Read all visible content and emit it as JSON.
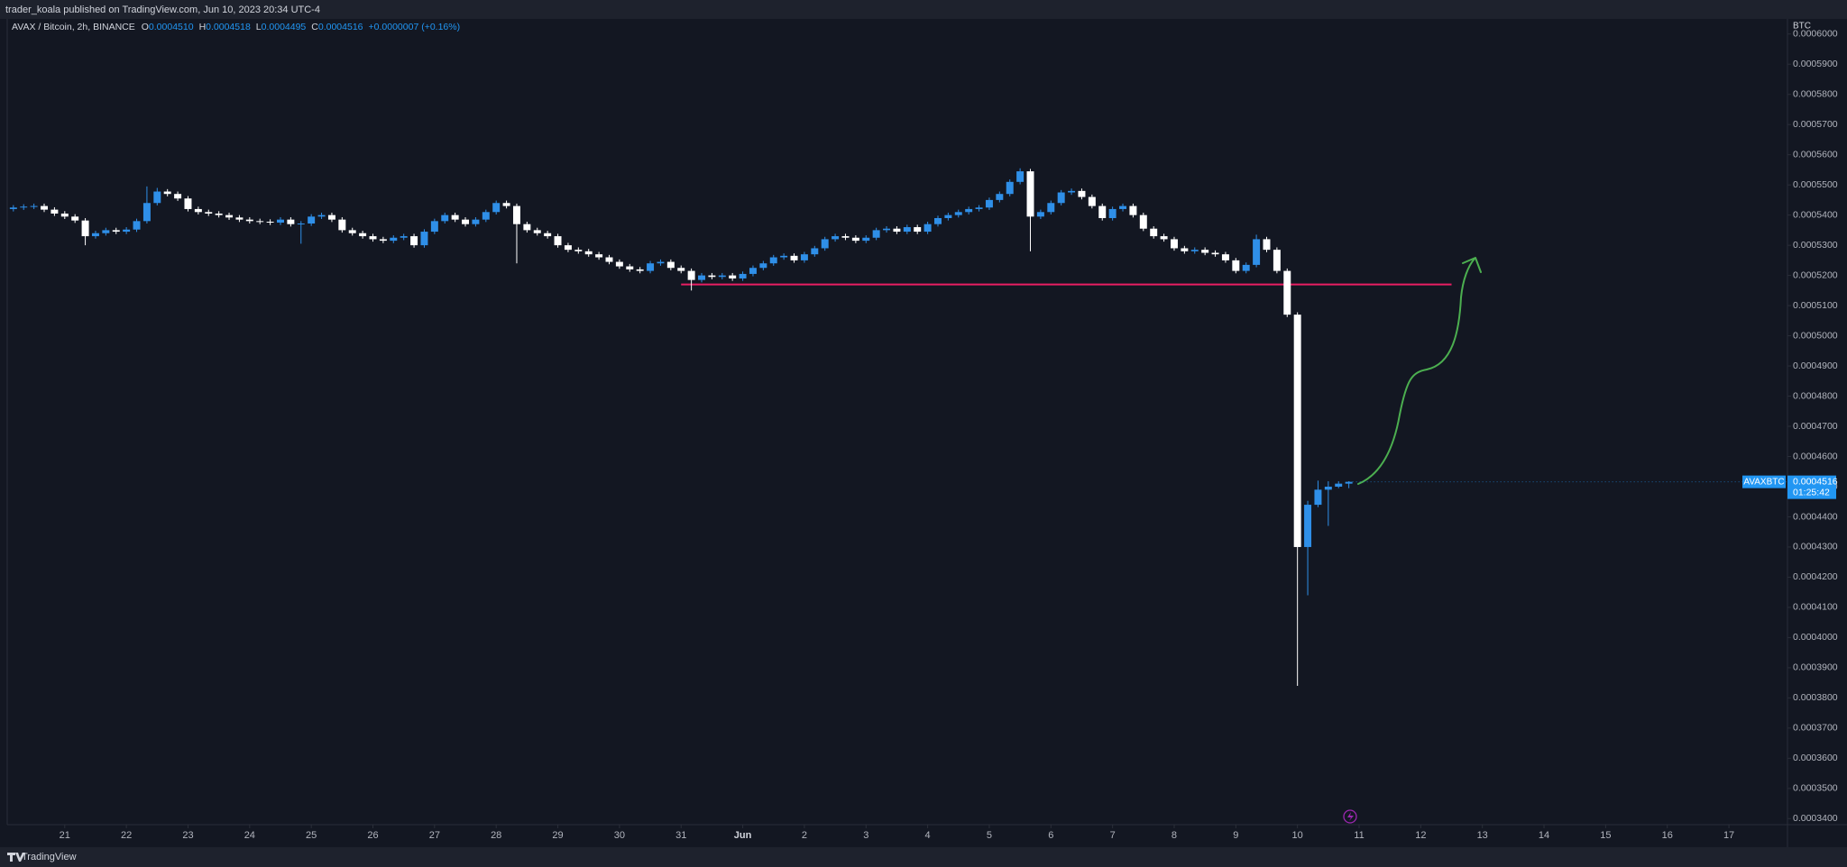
{
  "header": {
    "publisher": "trader_koala published on TradingView.com, Jun 10, 2023 20:34 UTC-4"
  },
  "chart_data": {
    "type": "candlestick",
    "title": "AVAX / Bitcoin, 2h, BINANCE",
    "legend_ohlc": [
      {
        "key": "O",
        "value": "0.0004510"
      },
      {
        "key": "H",
        "value": "0.0004518"
      },
      {
        "key": "L",
        "value": "0.0004495"
      },
      {
        "key": "C",
        "value": "0.0004516"
      }
    ],
    "change": "+0.0000007 (+0.16%)",
    "open": [
      0.000542,
      0.0005425,
      0.0005428,
      0.000543,
      0.0005418,
      0.0005405,
      0.0005395,
      0.0005382,
      0.000533,
      0.000534,
      0.000535,
      0.0005345,
      0.0005352,
      0.000538,
      0.000544,
      0.0005478,
      0.000547,
      0.0005455,
      0.000542,
      0.000541,
      0.0005405,
      0.00054,
      0.0005392,
      0.0005385,
      0.000538,
      0.0005378,
      0.0005375,
      0.0005385,
      0.000537,
      0.0005372,
      0.0005395,
      0.00054,
      0.0005385,
      0.000535,
      0.000534,
      0.000533,
      0.000532,
      0.0005315,
      0.0005325,
      0.000533,
      0.00053,
      0.0005345,
      0.000538,
      0.00054,
      0.0005385,
      0.000537,
      0.0005385,
      0.000541,
      0.000544,
      0.000543,
      0.000537,
      0.000535,
      0.000534,
      0.000533,
      0.00053,
      0.0005285,
      0.000528,
      0.000527,
      0.000526,
      0.0005245,
      0.000523,
      0.000522,
      0.0005215,
      0.000524,
      0.0005245,
      0.0005225,
      0.0005215,
      0.0005185,
      0.00052,
      0.0005195,
      0.00052,
      0.000519,
      0.0005205,
      0.0005225,
      0.000524,
      0.000526,
      0.0005265,
      0.000525,
      0.000527,
      0.000529,
      0.000532,
      0.000533,
      0.0005325,
      0.0005315,
      0.0005325,
      0.000535,
      0.0005355,
      0.0005345,
      0.000536,
      0.0005345,
      0.000537,
      0.000539,
      0.00054,
      0.000541,
      0.000542,
      0.0005425,
      0.000545,
      0.000547,
      0.000551,
      0.0005545,
      0.0005395,
      0.000541,
      0.000544,
      0.0005475,
      0.000548,
      0.000546,
      0.000543,
      0.000539,
      0.000542,
      0.000543,
      0.00054,
      0.0005355,
      0.000533,
      0.000532,
      0.000529,
      0.000528,
      0.0005285,
      0.0005275,
      0.000527,
      0.000525,
      0.0005215,
      0.0005235,
      0.000532,
      0.0005285,
      0.0005215,
      0.000507,
      0.00043,
      0.000444,
      0.000449,
      0.00045,
      0.000451
    ],
    "high": [
      0.0005433,
      0.0005436,
      0.0005438,
      0.0005438,
      0.0005426,
      0.0005413,
      0.0005403,
      0.000539,
      0.0005348,
      0.0005358,
      0.0005358,
      0.000536,
      0.0005388,
      0.0005495,
      0.000549,
      0.0005486,
      0.0005478,
      0.0005463,
      0.0005428,
      0.0005418,
      0.0005413,
      0.0005408,
      0.00054,
      0.0005393,
      0.0005388,
      0.0005386,
      0.0005393,
      0.0005393,
      0.000538,
      0.0005403,
      0.0005408,
      0.0005408,
      0.0005393,
      0.0005358,
      0.0005348,
      0.0005338,
      0.0005328,
      0.0005333,
      0.0005338,
      0.0005338,
      0.0005353,
      0.0005388,
      0.0005408,
      0.0005408,
      0.0005393,
      0.0005393,
      0.0005418,
      0.0005448,
      0.0005448,
      0.0005438,
      0.0005378,
      0.0005358,
      0.0005348,
      0.0005338,
      0.0005308,
      0.0005293,
      0.0005288,
      0.0005278,
      0.0005268,
      0.0005253,
      0.0005238,
      0.0005228,
      0.0005248,
      0.0005253,
      0.0005253,
      0.0005233,
      0.0005223,
      0.0005208,
      0.0005208,
      0.0005208,
      0.0005208,
      0.0005213,
      0.0005233,
      0.0005248,
      0.0005268,
      0.0005273,
      0.0005273,
      0.0005278,
      0.0005298,
      0.0005328,
      0.0005338,
      0.0005338,
      0.0005333,
      0.0005333,
      0.0005358,
      0.0005363,
      0.0005363,
      0.0005368,
      0.0005368,
      0.0005378,
      0.0005398,
      0.0005408,
      0.0005418,
      0.0005428,
      0.0005433,
      0.0005458,
      0.0005478,
      0.0005518,
      0.0005555,
      0.0005553,
      0.0005418,
      0.0005448,
      0.0005483,
      0.0005488,
      0.0005488,
      0.0005468,
      0.0005438,
      0.0005428,
      0.0005438,
      0.0005438,
      0.0005408,
      0.0005363,
      0.0005338,
      0.0005328,
      0.0005298,
      0.0005293,
      0.0005293,
      0.0005283,
      0.0005278,
      0.0005258,
      0.0005243,
      0.0005335,
      0.0005328,
      0.0005293,
      0.0005223,
      0.0005078,
      0.0004453,
      0.000452,
      0.0004518,
      0.0004518,
      0.0004518
    ],
    "low": [
      0.0005412,
      0.0005417,
      0.000542,
      0.000541,
      0.0005397,
      0.0005387,
      0.0005374,
      0.00053,
      0.0005322,
      0.0005332,
      0.0005337,
      0.0005337,
      0.0005344,
      0.0005372,
      0.0005432,
      0.0005462,
      0.0005447,
      0.0005412,
      0.0005402,
      0.0005397,
      0.0005392,
      0.0005384,
      0.0005377,
      0.0005372,
      0.000537,
      0.0005367,
      0.0005367,
      0.0005362,
      0.0005305,
      0.0005364,
      0.0005387,
      0.0005377,
      0.0005342,
      0.0005332,
      0.0005322,
      0.0005312,
      0.0005307,
      0.0005307,
      0.0005317,
      0.0005292,
      0.0005292,
      0.0005337,
      0.0005372,
      0.0005377,
      0.0005362,
      0.0005362,
      0.0005377,
      0.0005402,
      0.0005422,
      0.000524,
      0.0005342,
      0.0005332,
      0.0005322,
      0.0005292,
      0.0005277,
      0.0005272,
      0.0005262,
      0.0005252,
      0.0005237,
      0.0005222,
      0.0005212,
      0.0005207,
      0.0005207,
      0.0005232,
      0.0005217,
      0.0005207,
      0.000515,
      0.0005177,
      0.0005187,
      0.0005187,
      0.0005182,
      0.0005182,
      0.0005197,
      0.0005217,
      0.0005232,
      0.0005252,
      0.0005242,
      0.0005242,
      0.0005262,
      0.0005282,
      0.0005312,
      0.0005317,
      0.0005307,
      0.0005307,
      0.0005317,
      0.0005342,
      0.0005337,
      0.0005337,
      0.0005337,
      0.0005337,
      0.0005362,
      0.0005382,
      0.0005392,
      0.0005402,
      0.0005412,
      0.0005417,
      0.0005442,
      0.0005462,
      0.0005502,
      0.000528,
      0.0005387,
      0.0005402,
      0.0005432,
      0.0005467,
      0.0005452,
      0.0005422,
      0.0005382,
      0.0005382,
      0.0005412,
      0.0005392,
      0.0005347,
      0.0005322,
      0.0005312,
      0.0005282,
      0.0005272,
      0.0005272,
      0.0005267,
      0.0005262,
      0.0005242,
      0.0005207,
      0.0005207,
      0.0005227,
      0.0005277,
      0.0005207,
      0.0005062,
      0.000384,
      0.000414,
      0.0004432,
      0.000437,
      0.0004495,
      0.0004495
    ],
    "close": [
      0.0005425,
      0.0005428,
      0.000543,
      0.0005418,
      0.0005405,
      0.0005395,
      0.0005382,
      0.000533,
      0.000534,
      0.000535,
      0.0005345,
      0.0005352,
      0.000538,
      0.000544,
      0.0005478,
      0.000547,
      0.0005455,
      0.000542,
      0.000541,
      0.0005405,
      0.00054,
      0.0005392,
      0.0005385,
      0.000538,
      0.0005378,
      0.0005375,
      0.0005385,
      0.000537,
      0.0005372,
      0.0005395,
      0.00054,
      0.0005385,
      0.000535,
      0.000534,
      0.000533,
      0.000532,
      0.0005315,
      0.0005325,
      0.000533,
      0.00053,
      0.0005345,
      0.000538,
      0.00054,
      0.0005385,
      0.000537,
      0.0005385,
      0.000541,
      0.000544,
      0.000543,
      0.000537,
      0.000535,
      0.000534,
      0.000533,
      0.00053,
      0.0005285,
      0.000528,
      0.000527,
      0.000526,
      0.0005245,
      0.000523,
      0.000522,
      0.0005215,
      0.000524,
      0.0005245,
      0.0005225,
      0.0005215,
      0.0005185,
      0.00052,
      0.0005195,
      0.00052,
      0.000519,
      0.0005205,
      0.0005225,
      0.000524,
      0.000526,
      0.0005265,
      0.000525,
      0.000527,
      0.000529,
      0.000532,
      0.000533,
      0.0005325,
      0.0005315,
      0.0005325,
      0.000535,
      0.0005355,
      0.0005345,
      0.000536,
      0.0005345,
      0.000537,
      0.000539,
      0.00054,
      0.000541,
      0.000542,
      0.0005425,
      0.000545,
      0.000547,
      0.000551,
      0.0005545,
      0.0005395,
      0.000541,
      0.000544,
      0.0005475,
      0.000548,
      0.000546,
      0.000543,
      0.000539,
      0.000542,
      0.000543,
      0.00054,
      0.0005355,
      0.000533,
      0.000532,
      0.000529,
      0.000528,
      0.0005285,
      0.0005275,
      0.000527,
      0.000525,
      0.0005215,
      0.0005235,
      0.000532,
      0.0005285,
      0.0005215,
      0.000507,
      0.00043,
      0.000444,
      0.000449,
      0.00045,
      0.000451,
      0.0004516
    ],
    "up_color": "#2f8fe8",
    "down_color": "#ffffff",
    "xlim": [
      -0.6,
      172.7
    ],
    "xticks": [
      {
        "value": 5,
        "label": "21"
      },
      {
        "value": 11,
        "label": "22"
      },
      {
        "value": 17,
        "label": "23"
      },
      {
        "value": 23,
        "label": "24"
      },
      {
        "value": 29,
        "label": "25"
      },
      {
        "value": 35,
        "label": "26"
      },
      {
        "value": 41,
        "label": "27"
      },
      {
        "value": 47,
        "label": "28"
      },
      {
        "value": 53,
        "label": "29"
      },
      {
        "value": 59,
        "label": "30"
      },
      {
        "value": 65,
        "label": "31"
      },
      {
        "value": 71,
        "label": "Jun"
      },
      {
        "value": 77,
        "label": "2"
      },
      {
        "value": 83,
        "label": "3"
      },
      {
        "value": 89,
        "label": "4"
      },
      {
        "value": 95,
        "label": "5"
      },
      {
        "value": 101,
        "label": "6"
      },
      {
        "value": 107,
        "label": "7"
      },
      {
        "value": 113,
        "label": "8"
      },
      {
        "value": 119,
        "label": "9"
      },
      {
        "value": 125,
        "label": "10"
      },
      {
        "value": 131,
        "label": "11"
      },
      {
        "value": 137,
        "label": "12"
      },
      {
        "value": 143,
        "label": "13"
      },
      {
        "value": 149,
        "label": "14"
      },
      {
        "value": 155,
        "label": "15"
      },
      {
        "value": 161,
        "label": "16"
      },
      {
        "value": 167,
        "label": "17"
      }
    ],
    "ylim": [
      0.000338,
      0.000605
    ],
    "yticks": [
      {
        "value": 0.00034,
        "label": "0.0003400"
      },
      {
        "value": 0.00035,
        "label": "0.0003500"
      },
      {
        "value": 0.00036,
        "label": "0.0003600"
      },
      {
        "value": 0.00037,
        "label": "0.0003700"
      },
      {
        "value": 0.00038,
        "label": "0.0003800"
      },
      {
        "value": 0.00039,
        "label": "0.0003900"
      },
      {
        "value": 0.0004,
        "label": "0.0004000"
      },
      {
        "value": 0.00041,
        "label": "0.0004100"
      },
      {
        "value": 0.00042,
        "label": "0.0004200"
      },
      {
        "value": 0.00043,
        "label": "0.0004300"
      },
      {
        "value": 0.00044,
        "label": "0.0004400"
      },
      {
        "value": 0.00045,
        "label": "0.0004500"
      },
      {
        "value": 0.00046,
        "label": "0.0004600"
      },
      {
        "value": 0.00047,
        "label": "0.0004700"
      },
      {
        "value": 0.00048,
        "label": "0.0004800"
      },
      {
        "value": 0.00049,
        "label": "0.0004900"
      },
      {
        "value": 0.0005,
        "label": "0.0005000"
      },
      {
        "value": 0.00051,
        "label": "0.0005100"
      },
      {
        "value": 0.00052,
        "label": "0.0005200"
      },
      {
        "value": 0.00053,
        "label": "0.0005300"
      },
      {
        "value": 0.00054,
        "label": "0.0005400"
      },
      {
        "value": 0.00055,
        "label": "0.0005500"
      },
      {
        "value": 0.00056,
        "label": "0.0005600"
      },
      {
        "value": 0.00057,
        "label": "0.0005700"
      },
      {
        "value": 0.00058,
        "label": "0.0005800"
      },
      {
        "value": 0.00059,
        "label": "0.0005900"
      },
      {
        "value": 0.0006,
        "label": "0.0006000"
      }
    ],
    "y_axis_label": "BTC",
    "hline": {
      "value": 0.000517,
      "x": [
        65,
        140
      ],
      "color": "#e91e63"
    },
    "last_price": {
      "symbol": "AVAXBTC",
      "value": 0.0004516,
      "label": "0.0004516",
      "countdown": "01:25:42",
      "color": "#2196f3"
    }
  },
  "footer": {
    "brand": "TradingView"
  }
}
